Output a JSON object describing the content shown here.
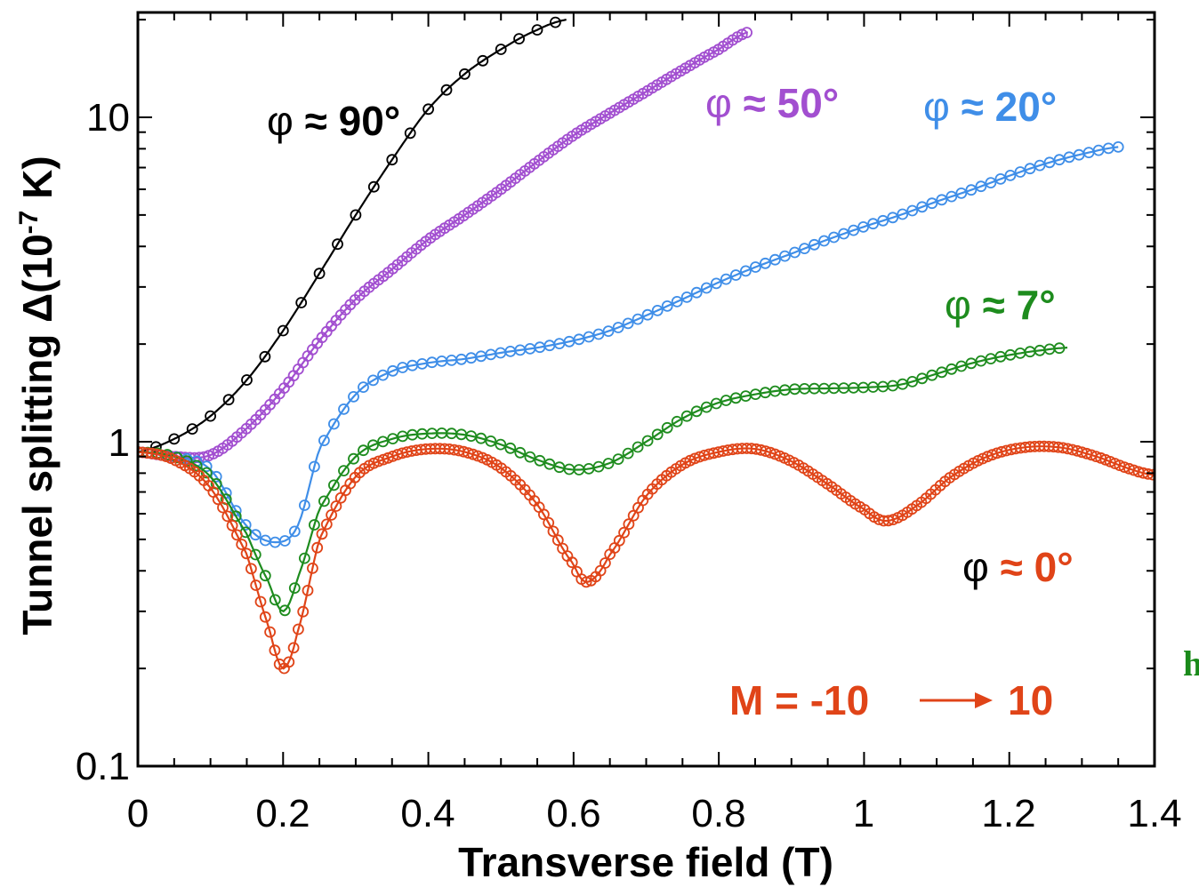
{
  "chart_data": {
    "type": "line",
    "xlabel": "Transverse field (T)",
    "ylabel_main": "Tunnel splitting Δ(10",
    "ylabel_sup": "-7",
    "ylabel_end": " K)",
    "xlim": [
      0,
      1.4
    ],
    "ylim": [
      0.1,
      20
    ],
    "yscale": "log",
    "grid": false,
    "x_ticks": [
      "0",
      "0.2",
      "0.4",
      "0.6",
      "0.8",
      "1",
      "1.2",
      "1.4"
    ],
    "y_ticks": [
      "0.1",
      "1",
      "10"
    ],
    "series": [
      {
        "label_phi": "φ",
        "label_rest": " ≈ 90°",
        "color": "#000000",
        "label_color": "#000000",
        "markers": "sparse",
        "points": [
          [
            0,
            0.93
          ],
          [
            0.05,
            1.02
          ],
          [
            0.1,
            1.2
          ],
          [
            0.15,
            1.55
          ],
          [
            0.2,
            2.2
          ],
          [
            0.25,
            3.3
          ],
          [
            0.3,
            5.0
          ],
          [
            0.35,
            7.4
          ],
          [
            0.4,
            10.6
          ],
          [
            0.45,
            13.6
          ],
          [
            0.5,
            16.2
          ],
          [
            0.55,
            18.6
          ],
          [
            0.59,
            20
          ]
        ]
      },
      {
        "label_phi": "φ",
        "label_rest": " ≈ 50°",
        "color": "#a24fd0",
        "label_color": "#a24fd0",
        "markers": "dense",
        "points": [
          [
            0,
            0.93
          ],
          [
            0.05,
            0.9
          ],
          [
            0.1,
            0.91
          ],
          [
            0.15,
            1.1
          ],
          [
            0.2,
            1.45
          ],
          [
            0.25,
            2.05
          ],
          [
            0.3,
            2.75
          ],
          [
            0.35,
            3.4
          ],
          [
            0.4,
            4.2
          ],
          [
            0.45,
            5.0
          ],
          [
            0.5,
            6.0
          ],
          [
            0.55,
            7.3
          ],
          [
            0.6,
            8.8
          ],
          [
            0.65,
            10.3
          ],
          [
            0.7,
            12.0
          ],
          [
            0.75,
            14.0
          ],
          [
            0.8,
            16.2
          ],
          [
            0.84,
            18.3
          ]
        ]
      },
      {
        "label_phi": "φ",
        "label_rest": " ≈ 20°",
        "color": "#3f8ee8",
        "label_color": "#3f8ee8",
        "markers": "medium",
        "points": [
          [
            0,
            0.93
          ],
          [
            0.05,
            0.9
          ],
          [
            0.1,
            0.82
          ],
          [
            0.15,
            0.55
          ],
          [
            0.19,
            0.49
          ],
          [
            0.22,
            0.55
          ],
          [
            0.25,
            0.95
          ],
          [
            0.3,
            1.4
          ],
          [
            0.35,
            1.65
          ],
          [
            0.4,
            1.75
          ],
          [
            0.45,
            1.8
          ],
          [
            0.5,
            1.88
          ],
          [
            0.55,
            1.95
          ],
          [
            0.6,
            2.05
          ],
          [
            0.65,
            2.2
          ],
          [
            0.7,
            2.45
          ],
          [
            0.75,
            2.75
          ],
          [
            0.8,
            3.1
          ],
          [
            0.85,
            3.45
          ],
          [
            0.9,
            3.8
          ],
          [
            0.95,
            4.2
          ],
          [
            1.0,
            4.6
          ],
          [
            1.05,
            5.0
          ],
          [
            1.1,
            5.5
          ],
          [
            1.15,
            6.0
          ],
          [
            1.2,
            6.6
          ],
          [
            1.25,
            7.2
          ],
          [
            1.3,
            7.7
          ],
          [
            1.35,
            8.1
          ]
        ]
      },
      {
        "label_phi": "φ",
        "label_rest": " ≈ 7°",
        "color": "#1e8c1e",
        "label_color": "#1e8c1e",
        "markers": "medium",
        "points": [
          [
            0,
            0.93
          ],
          [
            0.05,
            0.9
          ],
          [
            0.1,
            0.78
          ],
          [
            0.15,
            0.52
          ],
          [
            0.18,
            0.37
          ],
          [
            0.2,
            0.3
          ],
          [
            0.22,
            0.38
          ],
          [
            0.25,
            0.62
          ],
          [
            0.3,
            0.9
          ],
          [
            0.35,
            1.02
          ],
          [
            0.4,
            1.06
          ],
          [
            0.45,
            1.05
          ],
          [
            0.5,
            0.98
          ],
          [
            0.55,
            0.88
          ],
          [
            0.6,
            0.82
          ],
          [
            0.65,
            0.86
          ],
          [
            0.7,
            1.0
          ],
          [
            0.75,
            1.18
          ],
          [
            0.8,
            1.32
          ],
          [
            0.85,
            1.4
          ],
          [
            0.9,
            1.45
          ],
          [
            0.95,
            1.46
          ],
          [
            1.0,
            1.47
          ],
          [
            1.05,
            1.5
          ],
          [
            1.1,
            1.62
          ],
          [
            1.15,
            1.75
          ],
          [
            1.2,
            1.85
          ],
          [
            1.25,
            1.92
          ],
          [
            1.28,
            1.95
          ]
        ]
      },
      {
        "label_phi": "φ",
        "label_rest": " ≈ 0°",
        "color": "#e04418",
        "label_color": "#e04418",
        "phi_color": "#000000",
        "markers": "dense",
        "points": [
          [
            0,
            0.93
          ],
          [
            0.05,
            0.88
          ],
          [
            0.1,
            0.72
          ],
          [
            0.15,
            0.45
          ],
          [
            0.18,
            0.27
          ],
          [
            0.2,
            0.2
          ],
          [
            0.22,
            0.26
          ],
          [
            0.25,
            0.5
          ],
          [
            0.3,
            0.78
          ],
          [
            0.35,
            0.9
          ],
          [
            0.4,
            0.95
          ],
          [
            0.45,
            0.93
          ],
          [
            0.5,
            0.83
          ],
          [
            0.55,
            0.64
          ],
          [
            0.6,
            0.42
          ],
          [
            0.62,
            0.37
          ],
          [
            0.65,
            0.45
          ],
          [
            0.7,
            0.68
          ],
          [
            0.75,
            0.85
          ],
          [
            0.8,
            0.93
          ],
          [
            0.85,
            0.95
          ],
          [
            0.9,
            0.87
          ],
          [
            0.95,
            0.74
          ],
          [
            1.0,
            0.62
          ],
          [
            1.03,
            0.57
          ],
          [
            1.07,
            0.63
          ],
          [
            1.12,
            0.78
          ],
          [
            1.17,
            0.9
          ],
          [
            1.22,
            0.96
          ],
          [
            1.27,
            0.96
          ],
          [
            1.32,
            0.9
          ],
          [
            1.37,
            0.82
          ],
          [
            1.4,
            0.79
          ]
        ]
      }
    ],
    "annotation": {
      "text_a": "M = -10",
      "arrow": "→",
      "text_b": "10",
      "color": "#e04418"
    }
  },
  "stray_text": "h"
}
